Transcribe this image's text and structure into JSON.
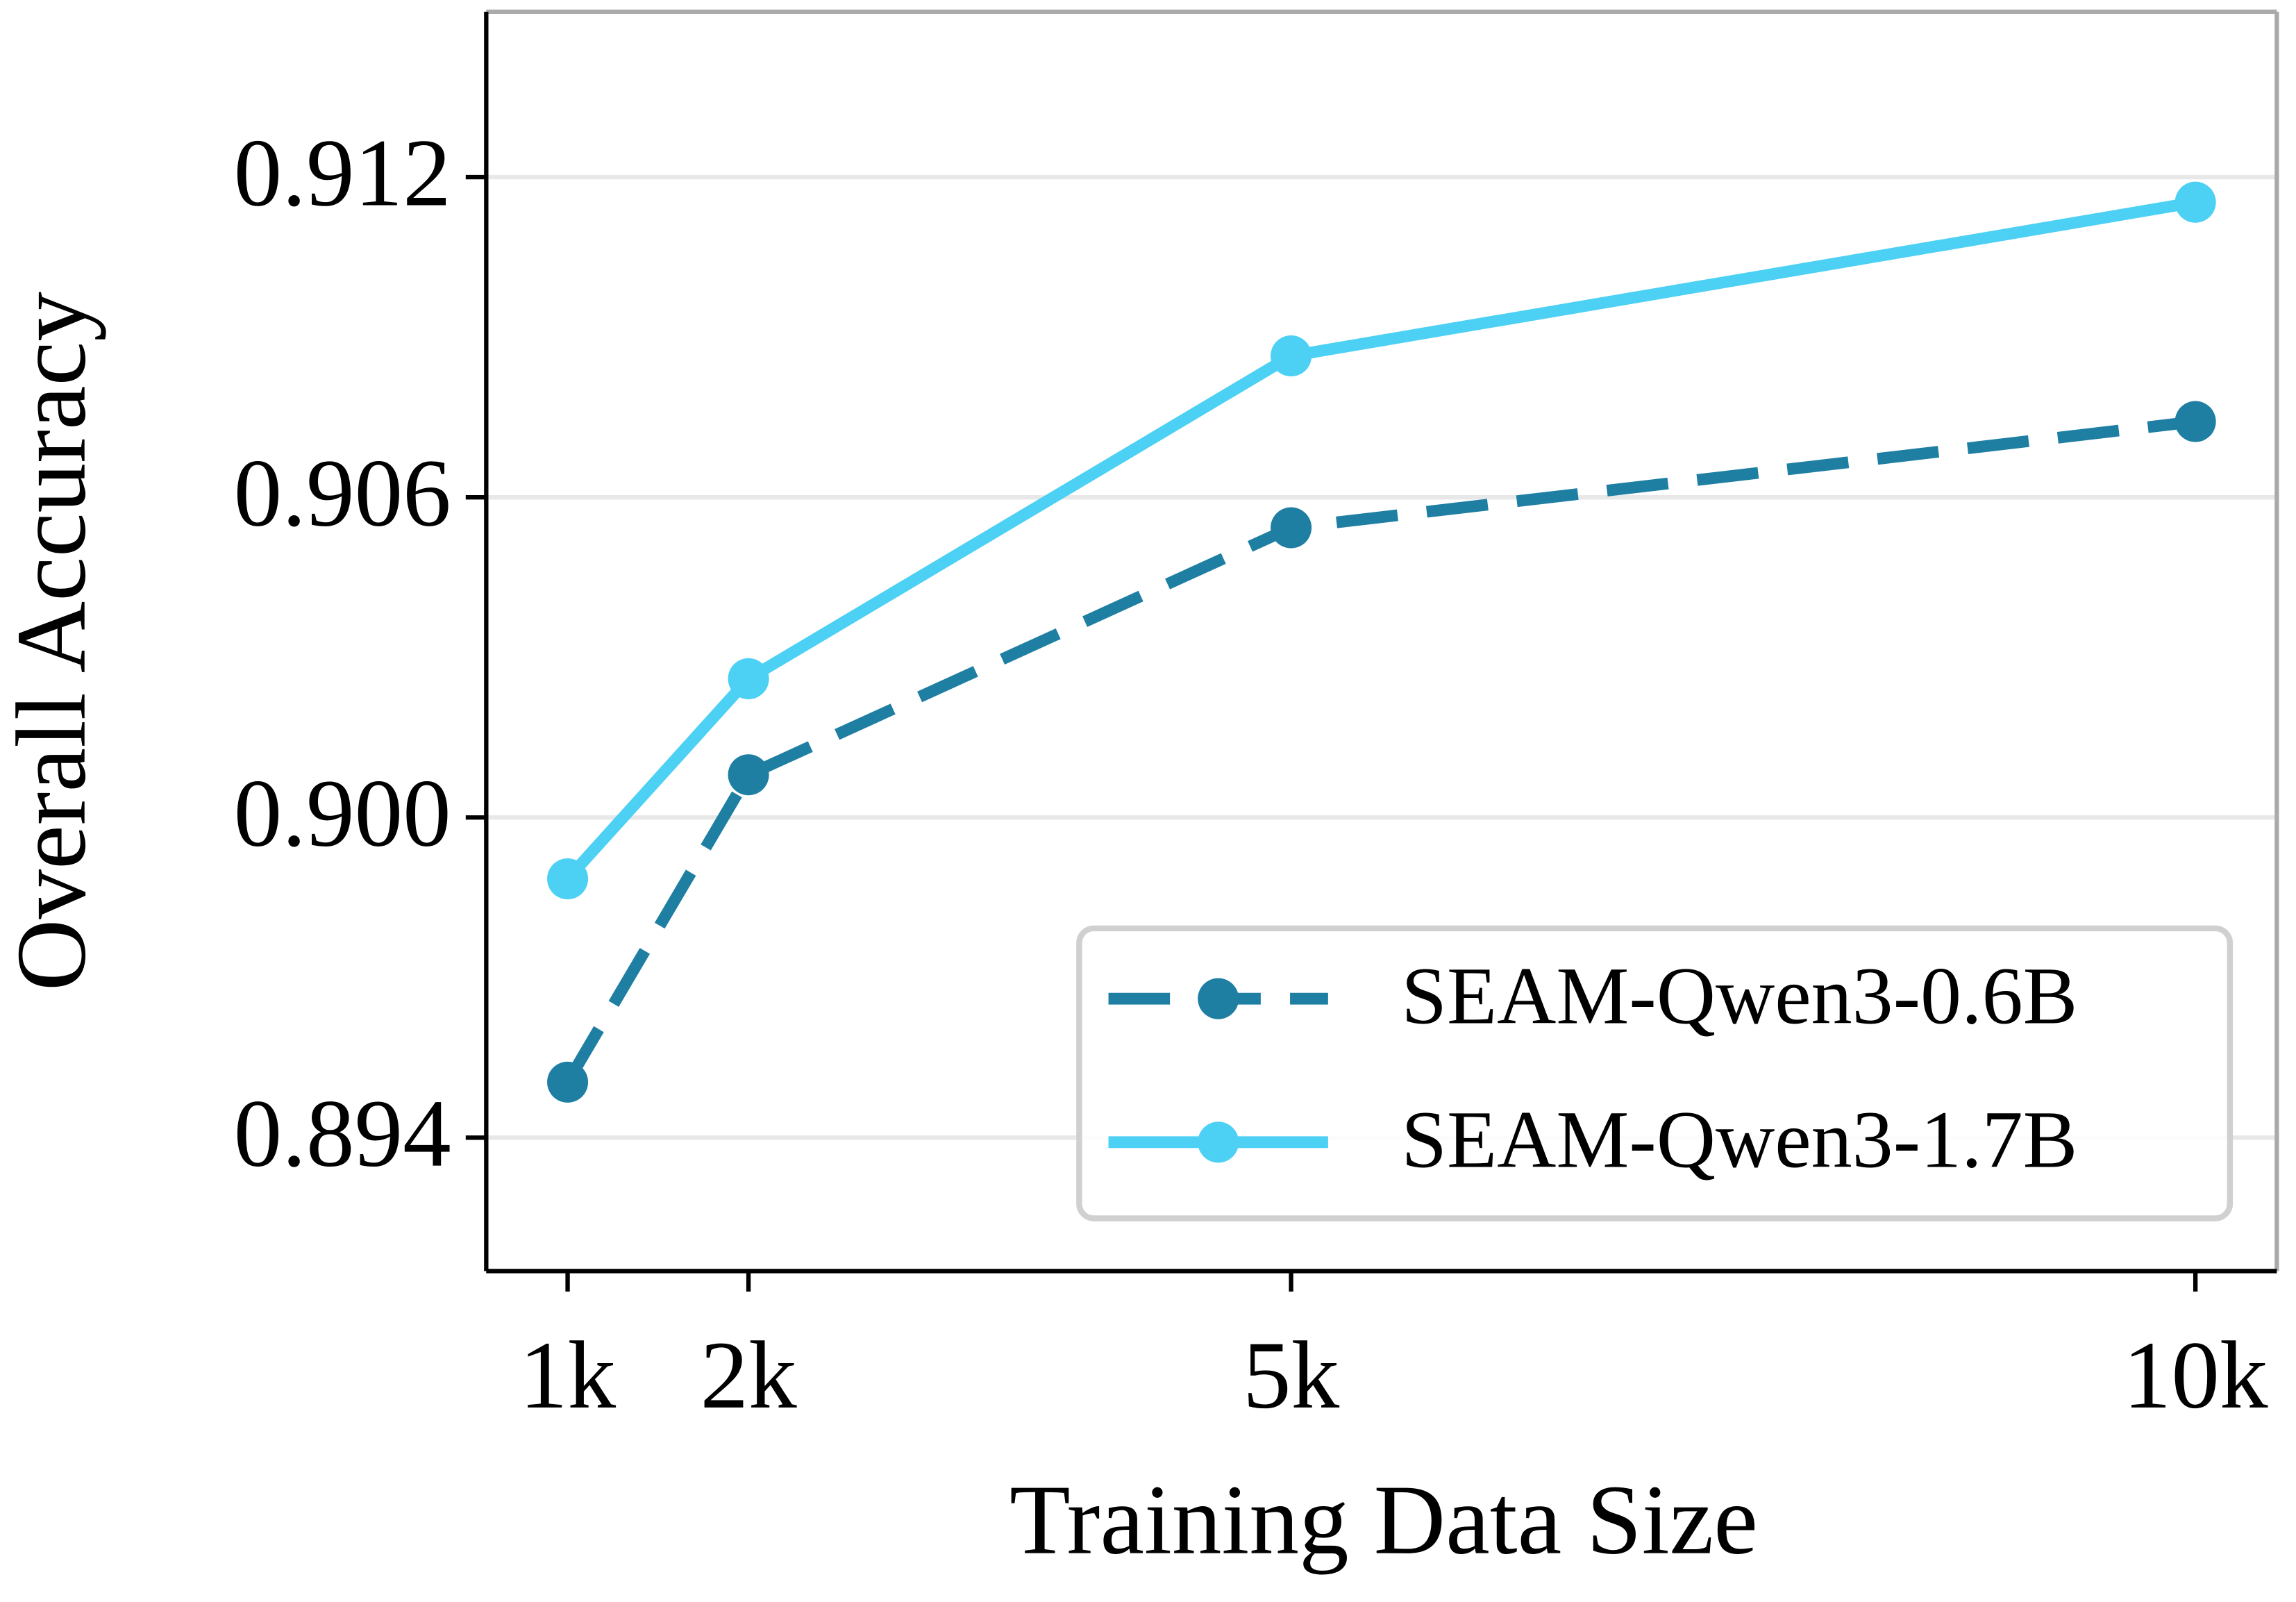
{
  "chart_data": {
    "type": "line",
    "xlabel": "Training Data Size",
    "ylabel": "Overall Accuracy",
    "x": [
      1000,
      2000,
      5000,
      10000
    ],
    "series": [
      {
        "name": "SEAM-Qwen3-0.6B",
        "color": "#1f7fa3",
        "dashed": true,
        "values": [
          0.89504,
          0.9008,
          0.90543,
          0.90742
        ]
      },
      {
        "name": "SEAM-Qwen3-1.7B",
        "color": "#4cd0f4",
        "dashed": false,
        "values": [
          0.89885,
          0.9026,
          0.90865,
          0.91153
        ]
      }
    ],
    "xlim": [
      550,
      10450
    ],
    "xticks": [
      {
        "value": 1000,
        "label": "1k"
      },
      {
        "value": 2000,
        "label": "2k"
      },
      {
        "value": 5000,
        "label": "5k"
      },
      {
        "value": 10000,
        "label": "10k"
      }
    ],
    "ylim": [
      0.8915,
      0.9151
    ],
    "yticks": [
      0.894,
      {
        "value": 0.9,
        "label": "0.900"
      },
      0.906,
      0.912
    ],
    "grid": true,
    "legend": "lower right"
  }
}
